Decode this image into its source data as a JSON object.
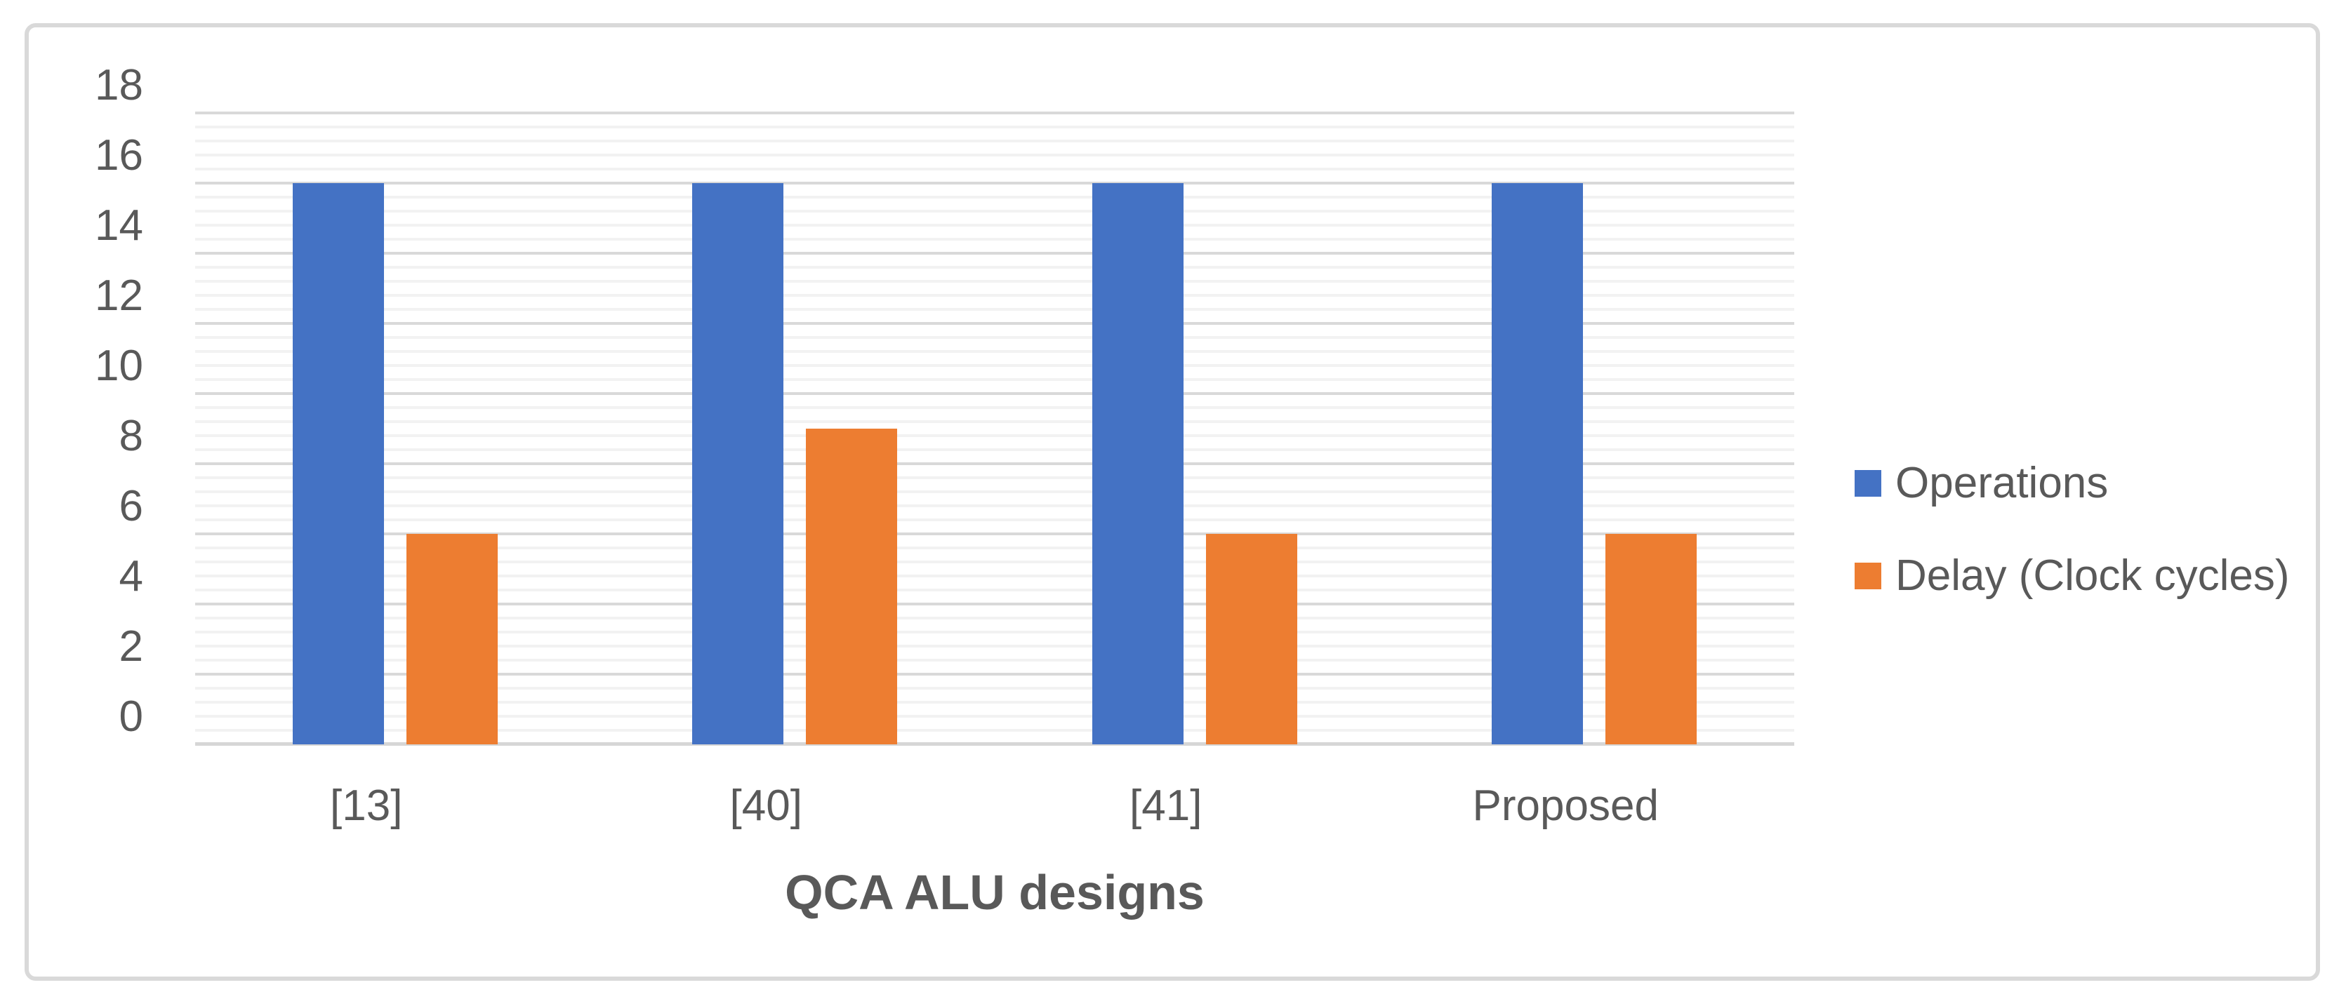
{
  "figure": {
    "kind": "clustered-column-chart-figure",
    "border_color": "#D9D9D9",
    "background": "#ffffff"
  },
  "chart_data": {
    "type": "bar",
    "title": "",
    "xlabel": "QCA ALU designs",
    "ylabel": "",
    "categories": [
      "[13]",
      "[40]",
      "[41]",
      "Proposed"
    ],
    "series": [
      {
        "name": "Operations",
        "color": "#4472C4",
        "values": [
          16,
          16,
          16,
          16
        ]
      },
      {
        "name": "Delay (Clock cycles)",
        "color": "#ED7D31",
        "values": [
          6,
          9,
          6,
          6
        ]
      }
    ],
    "ylim": [
      0,
      18
    ],
    "y_major_unit": 2,
    "y_minor_unit": 0.4,
    "y_tick_labels": [
      "0",
      "2",
      "4",
      "6",
      "8",
      "10",
      "12",
      "14",
      "16",
      "18"
    ],
    "grid": "major-and-minor-horizontal",
    "legend_position": "right",
    "colors": {
      "major_gridline": "#D9D9D9",
      "minor_gridline": "#F2F2F2",
      "axis_line": "#D6D6D6",
      "text": "#595959"
    }
  }
}
